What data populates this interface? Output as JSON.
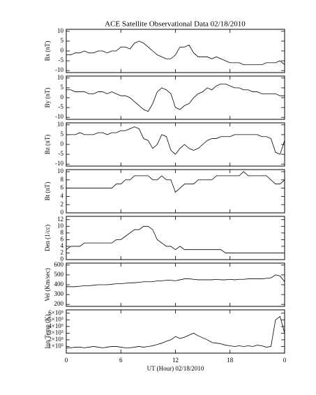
{
  "title": "ACE Satellite Observational Data   02/18/2010",
  "chart_data": [
    {
      "type": "line",
      "ylabel": "Bx (nT)",
      "color": "#000000",
      "xlim": [
        0,
        24
      ],
      "ylim": [
        -11,
        11
      ],
      "yticks": [
        -10,
        -5,
        0,
        5,
        10
      ],
      "x": [
        0,
        0.5,
        1,
        1.5,
        2,
        2.5,
        3,
        3.5,
        4,
        4.5,
        5,
        5.5,
        6,
        6.5,
        7,
        7.5,
        8,
        8.5,
        9,
        9.5,
        10,
        10.5,
        11,
        11.5,
        12,
        12.5,
        13,
        13.5,
        14,
        14.5,
        15,
        15.5,
        16,
        16.5,
        17,
        17.5,
        18,
        18.5,
        19,
        19.5,
        20,
        20.5,
        21,
        21.5,
        22,
        22.5,
        23,
        23.5,
        24
      ],
      "values": [
        -2,
        -2,
        -1,
        -1,
        0,
        -1,
        -1,
        0,
        0,
        -1,
        0,
        0,
        2,
        2,
        1,
        4,
        5,
        4,
        2,
        0,
        -2,
        -3,
        -4,
        -4,
        -2,
        2,
        2,
        3,
        -1,
        -3,
        -3,
        -3,
        -4,
        -3,
        -4,
        -5,
        -6,
        -6,
        -6,
        -7,
        -7,
        -7,
        -7,
        -7,
        -6,
        -6,
        -6,
        -5,
        -7
      ]
    },
    {
      "type": "line",
      "ylabel": "By (nT)",
      "color": "#000000",
      "xlim": [
        0,
        24
      ],
      "ylim": [
        -11,
        11
      ],
      "yticks": [
        -10,
        -5,
        0,
        5,
        10
      ],
      "x": [
        0,
        0.5,
        1,
        1.5,
        2,
        2.5,
        3,
        3.5,
        4,
        4.5,
        5,
        5.5,
        6,
        6.5,
        7,
        7.5,
        8,
        8.5,
        9,
        9.5,
        10,
        10.5,
        11,
        11.5,
        12,
        12.5,
        13,
        13.5,
        14,
        14.5,
        15,
        15.5,
        16,
        16.5,
        17,
        17.5,
        18,
        18.5,
        19,
        19.5,
        20,
        20.5,
        21,
        21.5,
        22,
        22.5,
        23,
        23.5,
        24
      ],
      "values": [
        4,
        4,
        3,
        3,
        3,
        2,
        2,
        3,
        3,
        2,
        3,
        2,
        1,
        1,
        0,
        -2,
        -4,
        -6,
        -7,
        -3,
        3,
        5,
        4,
        2,
        -5,
        -6,
        -4,
        -3,
        0,
        2,
        3,
        5,
        4,
        6,
        7,
        7,
        6,
        5,
        5,
        4,
        4,
        3,
        3,
        2,
        2,
        2,
        2,
        1,
        1
      ]
    },
    {
      "type": "line",
      "ylabel": "Bz (nT)",
      "color": "#000000",
      "xlim": [
        0,
        24
      ],
      "ylim": [
        -11,
        11
      ],
      "yticks": [
        -10,
        -5,
        0,
        5,
        10
      ],
      "x": [
        0,
        0.5,
        1,
        1.5,
        2,
        2.5,
        3,
        3.5,
        4,
        4.5,
        5,
        5.5,
        6,
        6.5,
        7,
        7.5,
        8,
        8.5,
        9,
        9.5,
        10,
        10.5,
        11,
        11.5,
        12,
        12.5,
        13,
        13.5,
        14,
        14.5,
        15,
        15.5,
        16,
        16.5,
        17,
        17.5,
        18,
        18.5,
        19,
        19.5,
        20,
        20.5,
        21,
        21.5,
        22,
        22.5,
        23,
        23.5,
        24
      ],
      "values": [
        5,
        5,
        5,
        6,
        5,
        5,
        5,
        6,
        6,
        5,
        6,
        6,
        7,
        7,
        8,
        9,
        8,
        3,
        2,
        -2,
        0,
        5,
        4,
        -3,
        -5,
        -2,
        0,
        -2,
        -3,
        -2,
        0,
        2,
        3,
        3,
        4,
        4,
        4,
        5,
        5,
        5,
        5,
        5,
        5,
        4,
        4,
        3,
        -4,
        -5,
        2
      ]
    },
    {
      "type": "line",
      "ylabel": "Bt (nT)",
      "color": "#000000",
      "xlim": [
        0,
        24
      ],
      "ylim": [
        0,
        10.5
      ],
      "yticks": [
        0,
        2,
        4,
        6,
        8,
        10
      ],
      "x": [
        0,
        0.5,
        1,
        1.5,
        2,
        2.5,
        3,
        3.5,
        4,
        4.5,
        5,
        5.5,
        6,
        6.5,
        7,
        7.5,
        8,
        8.5,
        9,
        9.5,
        10,
        10.5,
        11,
        11.5,
        12,
        12.5,
        13,
        13.5,
        14,
        14.5,
        15,
        15.5,
        16,
        16.5,
        17,
        17.5,
        18,
        18.5,
        19,
        19.5,
        20,
        20.5,
        21,
        21.5,
        22,
        22.5,
        23,
        23.5,
        24
      ],
      "values": [
        6,
        6,
        6,
        6,
        6,
        6,
        6,
        6,
        6,
        6,
        6,
        7,
        7,
        8,
        8,
        9,
        9,
        9,
        9,
        8,
        8,
        9,
        8,
        8,
        5,
        6,
        7,
        7,
        7,
        8,
        8,
        8,
        8,
        9,
        9,
        9,
        9,
        9,
        9,
        10,
        9,
        9,
        9,
        9,
        9,
        8,
        7,
        7,
        8
      ]
    },
    {
      "type": "line",
      "ylabel": "Den (1/cc)",
      "color": "#000000",
      "xlim": [
        0,
        24
      ],
      "ylim": [
        0,
        13
      ],
      "yticks": [
        0,
        2,
        4,
        6,
        8,
        10,
        12
      ],
      "x": [
        0,
        0.5,
        1,
        1.5,
        2,
        2.5,
        3,
        3.5,
        4,
        4.5,
        5,
        5.5,
        6,
        6.5,
        7,
        7.5,
        8,
        8.5,
        9,
        9.5,
        10,
        10.5,
        11,
        11.5,
        12,
        12.5,
        13,
        13.5,
        14,
        14.5,
        15,
        15.5,
        16,
        16.5,
        17,
        17.5,
        18,
        18.5,
        19,
        19.5,
        20,
        20.5,
        21,
        21.5,
        22,
        22.5,
        23,
        23.5,
        24
      ],
      "values": [
        3,
        4,
        4,
        4,
        5,
        5,
        5,
        5,
        5,
        5,
        5,
        6,
        6,
        7,
        8,
        9,
        9,
        10,
        10,
        9,
        6,
        5,
        4,
        4,
        3,
        4,
        3,
        3,
        3,
        3,
        3,
        3,
        3,
        3,
        3,
        2,
        2,
        2,
        2,
        2,
        2,
        2,
        2,
        2,
        2,
        2,
        2,
        2,
        2
      ]
    },
    {
      "type": "line",
      "ylabel": "Vel (Km/sec)",
      "color": "#000000",
      "xlim": [
        0,
        24
      ],
      "ylim": [
        180,
        620
      ],
      "yticks": [
        200,
        300,
        400,
        500,
        600
      ],
      "x": [
        0,
        0.5,
        1,
        1.5,
        2,
        2.5,
        3,
        3.5,
        4,
        4.5,
        5,
        5.5,
        6,
        6.5,
        7,
        7.5,
        8,
        8.5,
        9,
        9.5,
        10,
        10.5,
        11,
        11.5,
        12,
        12.5,
        13,
        13.5,
        14,
        14.5,
        15,
        15.5,
        16,
        16.5,
        17,
        17.5,
        18,
        18.5,
        19,
        19.5,
        20,
        20.5,
        21,
        21.5,
        22,
        22.5,
        23,
        23.5,
        24
      ],
      "values": [
        380,
        380,
        380,
        385,
        390,
        390,
        395,
        400,
        400,
        400,
        405,
        410,
        410,
        415,
        420,
        420,
        425,
        430,
        430,
        430,
        440,
        440,
        445,
        445,
        440,
        450,
        460,
        460,
        455,
        450,
        450,
        450,
        450,
        455,
        450,
        450,
        455,
        450,
        455,
        455,
        460,
        460,
        460,
        460,
        465,
        470,
        500,
        490,
        430
      ]
    },
    {
      "type": "line",
      "ylabel": "Ion Temp (K)",
      "xlabel": "UT (Hour)  02/18/2010",
      "color": "#000000",
      "xlim": [
        0,
        24
      ],
      "ylim": [
        0,
        650000
      ],
      "yticks": [
        {
          "value": 100000,
          "label": "1×10⁵"
        },
        {
          "value": 200000,
          "label": "2×10⁵"
        },
        {
          "value": 300000,
          "label": "3×10⁵"
        },
        {
          "value": 400000,
          "label": "4×10⁵"
        },
        {
          "value": 500000,
          "label": "5×10⁵"
        },
        {
          "value": 600000,
          "label": "6×10⁵"
        }
      ],
      "xticks": [
        0,
        6,
        12,
        18,
        {
          "value": 24,
          "label": "0"
        }
      ],
      "x": [
        0,
        0.5,
        1,
        1.5,
        2,
        2.5,
        3,
        3.5,
        4,
        4.5,
        5,
        5.5,
        6,
        6.5,
        7,
        7.5,
        8,
        8.5,
        9,
        9.5,
        10,
        10.5,
        11,
        11.5,
        12,
        12.5,
        13,
        13.5,
        14,
        14.5,
        15,
        15.5,
        16,
        16.5,
        17,
        17.5,
        18,
        18.5,
        19,
        19.5,
        20,
        20.5,
        21,
        21.5,
        22,
        22.5,
        23,
        23.5,
        24
      ],
      "values": [
        80000,
        80000,
        90000,
        90000,
        80000,
        90000,
        100000,
        90000,
        80000,
        90000,
        100000,
        100000,
        90000,
        80000,
        80000,
        90000,
        100000,
        90000,
        100000,
        110000,
        130000,
        150000,
        180000,
        200000,
        250000,
        220000,
        240000,
        270000,
        300000,
        260000,
        230000,
        200000,
        160000,
        150000,
        140000,
        120000,
        110000,
        100000,
        110000,
        100000,
        110000,
        100000,
        120000,
        110000,
        90000,
        100000,
        500000,
        550000,
        300000
      ]
    }
  ]
}
